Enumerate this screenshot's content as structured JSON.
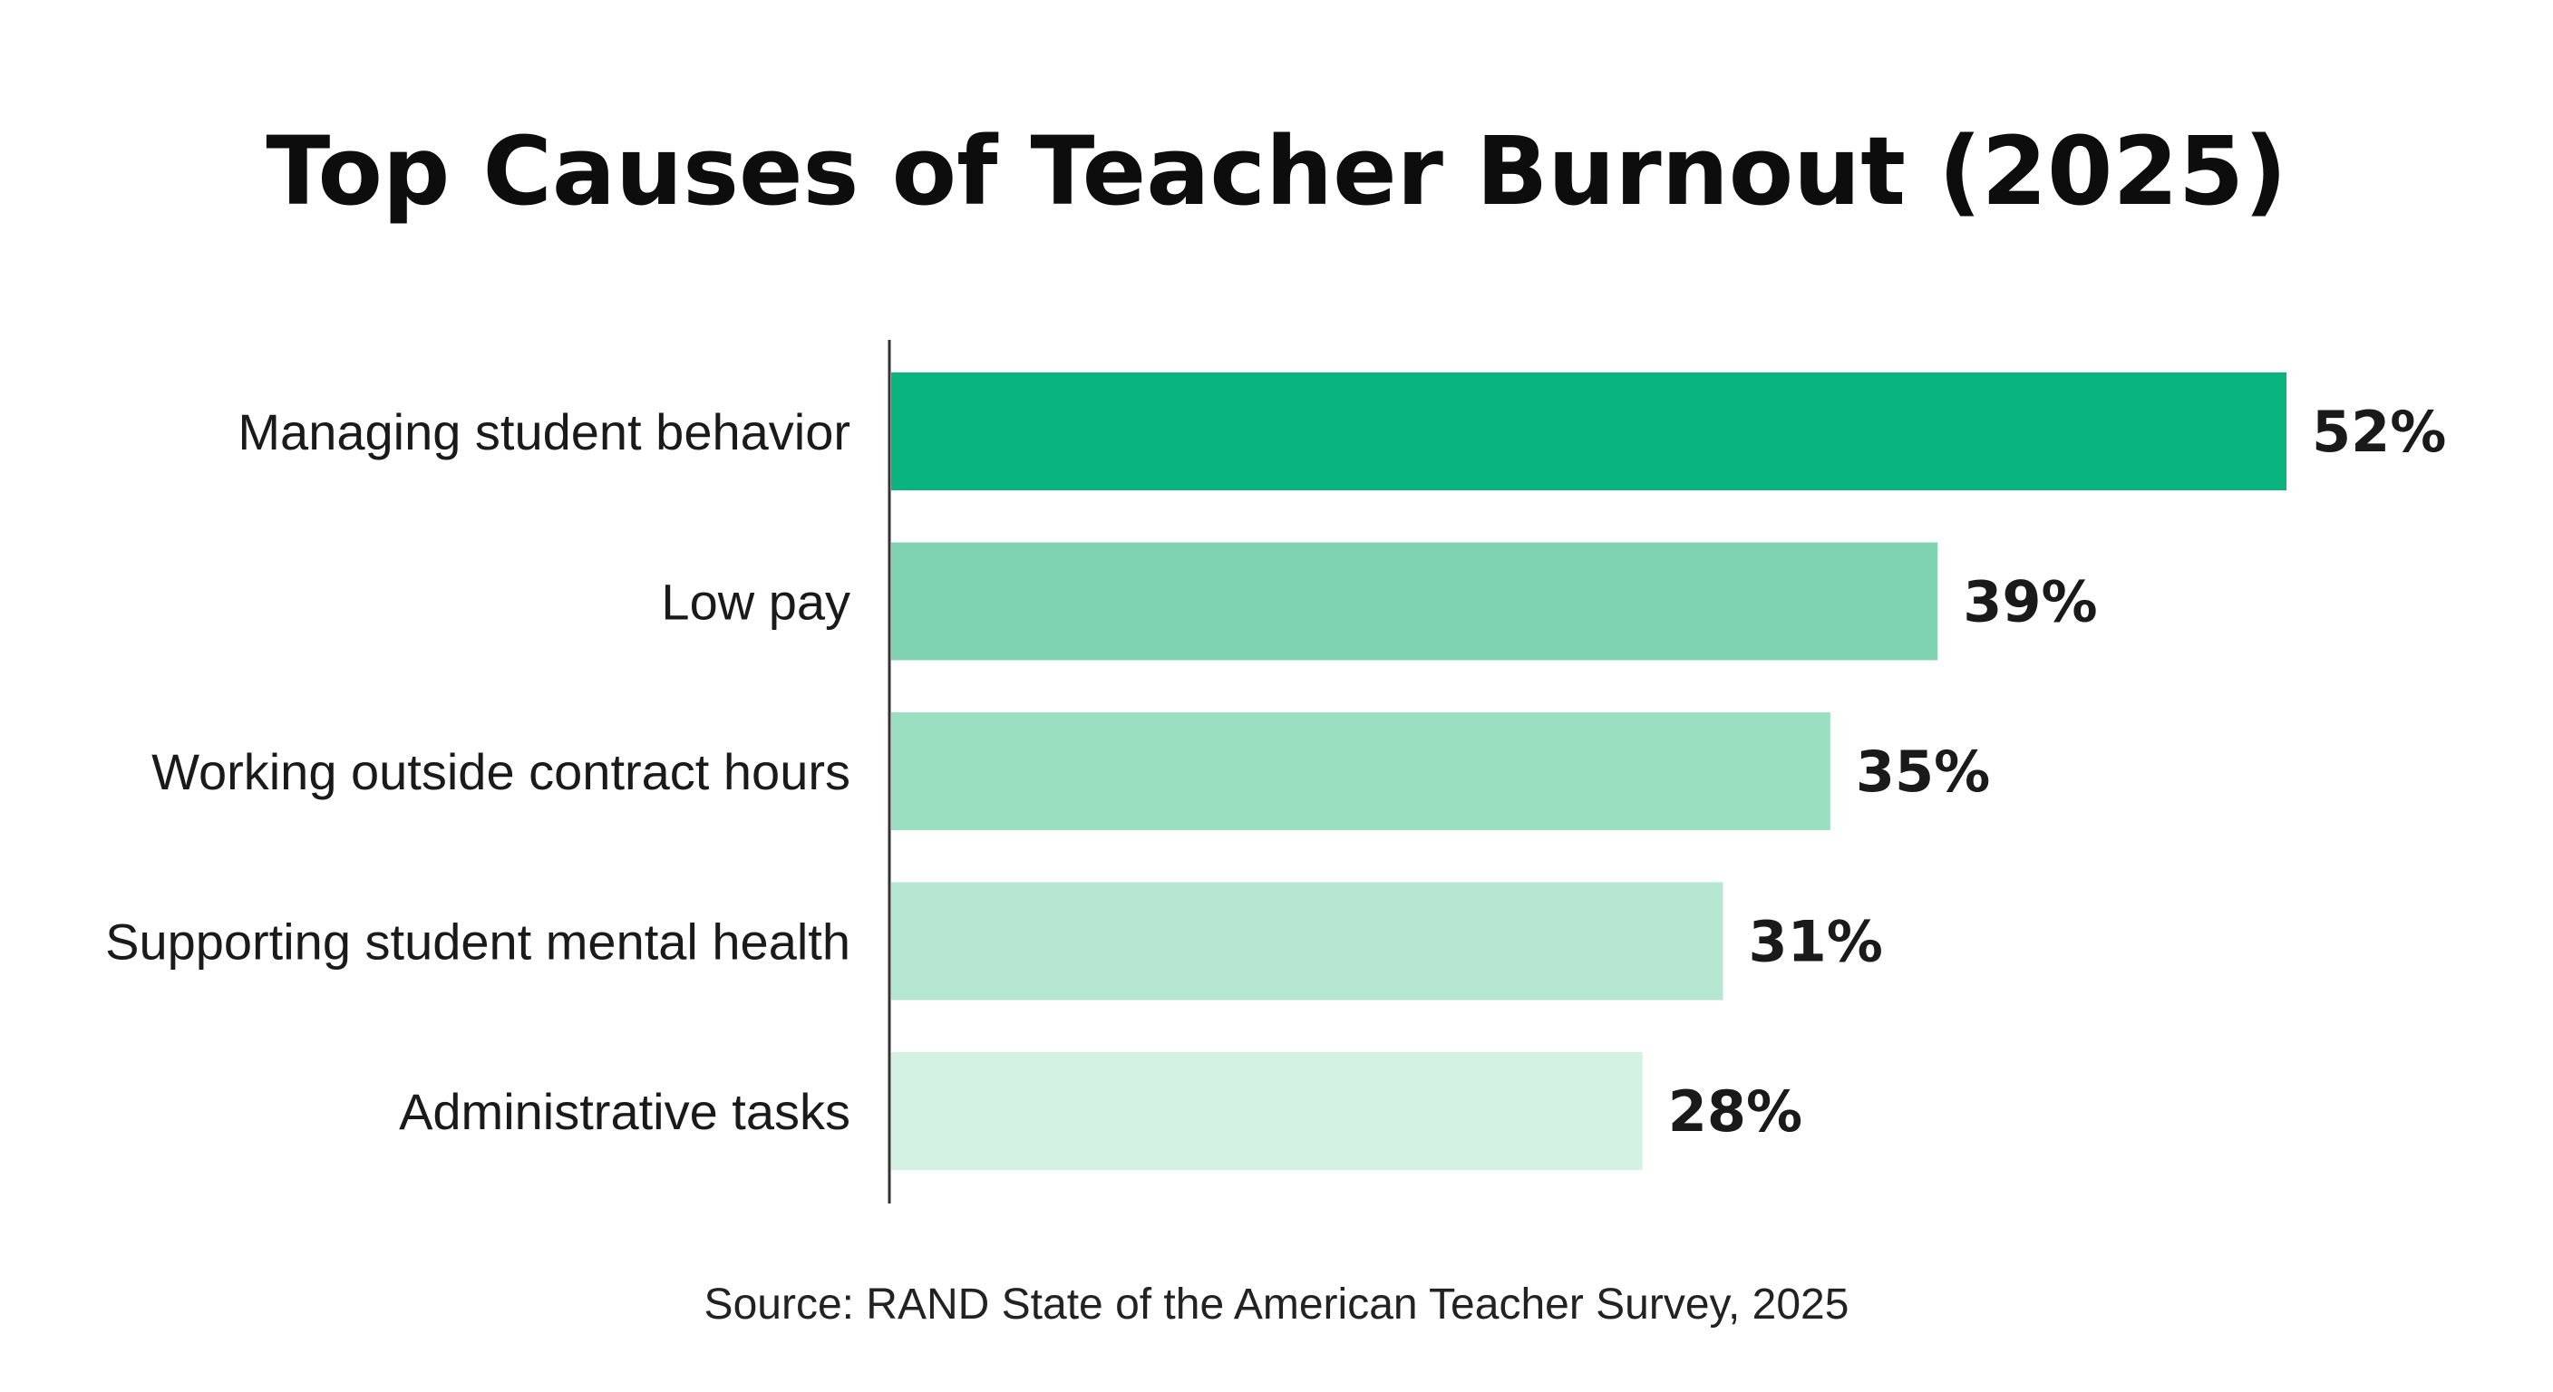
{
  "chart_data": {
    "type": "bar",
    "orientation": "horizontal",
    "title": "Top Causes of Teacher Burnout (2025)",
    "categories": [
      "Managing student behavior",
      "Low pay",
      "Working outside contract hours",
      "Supporting student mental health",
      "Administrative tasks"
    ],
    "values": [
      52,
      39,
      35,
      31,
      28
    ],
    "value_labels": [
      "52%",
      "39%",
      "35%",
      "31%",
      "28%"
    ],
    "value_unit": "%",
    "colors": [
      "#0ab47e",
      "#7fd3b0",
      "#9adfc0",
      "#b5e7d2",
      "#d3f2e4"
    ],
    "xlim": [
      0,
      52
    ],
    "grid": false,
    "legend": "none",
    "source": "Source: RAND State of the American Teacher Survey, 2025"
  }
}
